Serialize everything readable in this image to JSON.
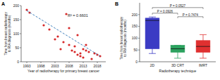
{
  "chart_data": [
    {
      "type": "scatter",
      "title": "A",
      "x_label": "Year of radiotherapy for primary breast cancer",
      "y_label": "Time from breast radiotherapy to RIA diagnosis (months)",
      "xlim": [
        1991,
        2021
      ],
      "xticks": [
        1993,
        1998,
        2003,
        2008,
        2013,
        2018
      ],
      "ylim": [
        0,
        200
      ],
      "yticks": [
        0,
        50,
        100,
        150,
        200
      ],
      "x": [
        1993,
        1994,
        1999,
        2001,
        2003,
        2004,
        2005,
        2006,
        2007,
        2008,
        2008,
        2009,
        2010,
        2010,
        2011,
        2011,
        2012,
        2012,
        2013,
        2013,
        2014,
        2014,
        2015,
        2016,
        2017,
        2018,
        2019
      ],
      "values": [
        185,
        175,
        130,
        115,
        80,
        90,
        45,
        70,
        170,
        120,
        60,
        40,
        35,
        55,
        95,
        25,
        30,
        20,
        45,
        15,
        60,
        40,
        35,
        10,
        30,
        25,
        20
      ],
      "color": "#d62728",
      "marker": "circle",
      "trend": {
        "x": [
          1993,
          2019
        ],
        "values": [
          182,
          20
        ],
        "color": "#2e75b6",
        "line_style": "dashed"
      },
      "annotations": [
        "R² = 0.6601"
      ]
    },
    {
      "type": "box",
      "title": "B",
      "x_label": "Radiotherapy technique",
      "y_label": "Time from breast radiotherapy to RIA diagnosis (months)",
      "categories": [
        "2D",
        "3D CRT",
        "IMRT"
      ],
      "colors": [
        "#3b3bc4",
        "#2ca25f",
        "#e03030"
      ],
      "boxes": [
        {
          "min": 35,
          "q1": 55,
          "median": 175,
          "q3": 185,
          "max": 190
        },
        {
          "min": 15,
          "q1": 40,
          "median": 55,
          "q3": 70,
          "max": 70
        },
        {
          "min": 15,
          "q1": 40,
          "median": 65,
          "q3": 90,
          "max": 115
        }
      ],
      "ylim": [
        0,
        250
      ],
      "yticks": [
        0,
        50,
        100,
        150,
        200
      ],
      "comparisons": [
        {
          "pair": [
            0,
            2
          ],
          "label": "P = 0.0527"
        },
        {
          "pair": [
            0,
            1
          ],
          "label": "P = 0.0926"
        },
        {
          "pair": [
            1,
            2
          ],
          "label": "P = 0.7474"
        }
      ]
    }
  ]
}
